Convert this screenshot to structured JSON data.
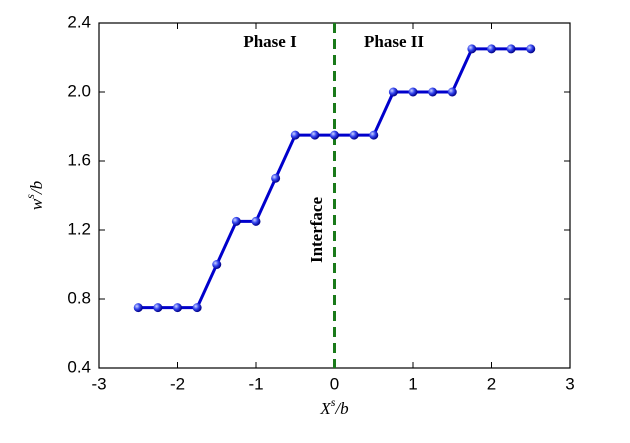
{
  "chart_data": {
    "type": "line",
    "x": [
      -2.5,
      -2.25,
      -2,
      -1.75,
      -1.5,
      -1.25,
      -1,
      -0.75,
      -0.5,
      -0.25,
      0,
      0.25,
      0.5,
      0.75,
      1,
      1.25,
      1.5,
      1.75,
      2,
      2.25,
      2.5
    ],
    "series": [
      {
        "color": "#0000cc",
        "values": [
          0.75,
          0.75,
          0.75,
          0.75,
          1.0,
          1.25,
          1.25,
          1.5,
          1.75,
          1.75,
          1.75,
          1.75,
          1.75,
          2.0,
          2.0,
          2.0,
          2.0,
          2.25,
          2.25,
          2.25,
          2.25
        ]
      }
    ],
    "xlim": [
      -3,
      3
    ],
    "xticks": [
      -3,
      -2,
      -1,
      0,
      1,
      2,
      3
    ],
    "ylim": [
      0.4,
      2.4
    ],
    "yticks": [
      0.4,
      0.8,
      1.2,
      1.6,
      {
        "value": 2,
        "label": "2.0"
      },
      2.4
    ],
    "xlabel": {
      "base": "X",
      "sup": "s",
      "rest": "/b"
    },
    "ylabel": {
      "base": "w",
      "sup": "s",
      "rest": "/b"
    },
    "annotations": {
      "left": "Phase I",
      "right": "Phase II",
      "line_label": "Interface",
      "vline": 0,
      "vline_color": "#1a7a1a"
    }
  }
}
